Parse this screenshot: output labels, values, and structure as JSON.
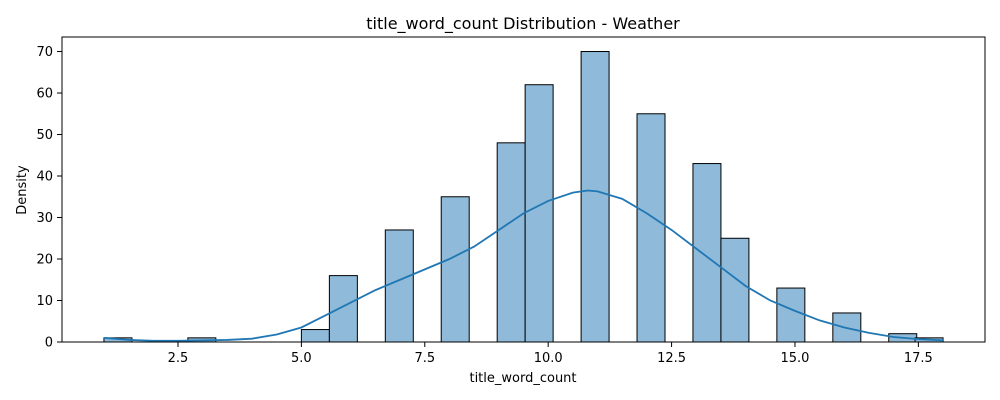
{
  "chart_data": {
    "type": "bar",
    "title": "title_word_count Distribution - Weather",
    "xlabel": "title_word_count",
    "ylabel": "Density",
    "xlim": [
      0.15,
      18.85
    ],
    "ylim": [
      0,
      73.5
    ],
    "xticks": [
      2.5,
      5.0,
      7.5,
      10.0,
      12.5,
      15.0,
      17.5
    ],
    "xtick_labels": [
      "2.5",
      "5.0",
      "7.5",
      "10.0",
      "12.5",
      "15.0",
      "17.5"
    ],
    "yticks": [
      0,
      10,
      20,
      30,
      40,
      50,
      60,
      70
    ],
    "ytick_labels": [
      "0",
      "10",
      "20",
      "30",
      "40",
      "50",
      "60",
      "70"
    ],
    "grid": false,
    "bin_width": 0.567,
    "bars": [
      {
        "x0": 1.0,
        "value": 1
      },
      {
        "x0": 2.7,
        "value": 1
      },
      {
        "x0": 5.0,
        "value": 3
      },
      {
        "x0": 5.567,
        "value": 16
      },
      {
        "x0": 6.7,
        "value": 27
      },
      {
        "x0": 7.833,
        "value": 35
      },
      {
        "x0": 8.967,
        "value": 48
      },
      {
        "x0": 9.533,
        "value": 62
      },
      {
        "x0": 10.667,
        "value": 70
      },
      {
        "x0": 11.8,
        "value": 55
      },
      {
        "x0": 12.933,
        "value": 43
      },
      {
        "x0": 13.5,
        "value": 25
      },
      {
        "x0": 14.633,
        "value": 13
      },
      {
        "x0": 15.767,
        "value": 7
      },
      {
        "x0": 16.9,
        "value": 2
      },
      {
        "x0": 17.433,
        "value": 1
      }
    ],
    "kde": {
      "x": [
        1.0,
        1.5,
        2.0,
        2.5,
        3.0,
        3.5,
        4.0,
        4.5,
        5.0,
        5.5,
        6.0,
        6.5,
        7.0,
        7.5,
        8.0,
        8.5,
        9.0,
        9.5,
        10.0,
        10.5,
        10.8,
        11.0,
        11.5,
        12.0,
        12.5,
        13.0,
        13.5,
        14.0,
        14.5,
        15.0,
        15.5,
        16.0,
        16.5,
        17.0,
        17.5,
        18.0
      ],
      "y": [
        1.0,
        0.5,
        0.3,
        0.3,
        0.4,
        0.5,
        0.8,
        1.8,
        3.5,
        6.5,
        9.5,
        12.5,
        15.0,
        17.5,
        20.0,
        23.0,
        27.0,
        31.0,
        34.0,
        36.0,
        36.5,
        36.3,
        34.5,
        31.0,
        27.0,
        22.5,
        18.0,
        13.5,
        10.0,
        7.5,
        5.2,
        3.5,
        2.2,
        1.2,
        0.7,
        0.4
      ]
    },
    "colors": {
      "bar_fill": "#8fbad9",
      "bar_edge": "#000000",
      "kde_line": "#1f77b4"
    }
  }
}
